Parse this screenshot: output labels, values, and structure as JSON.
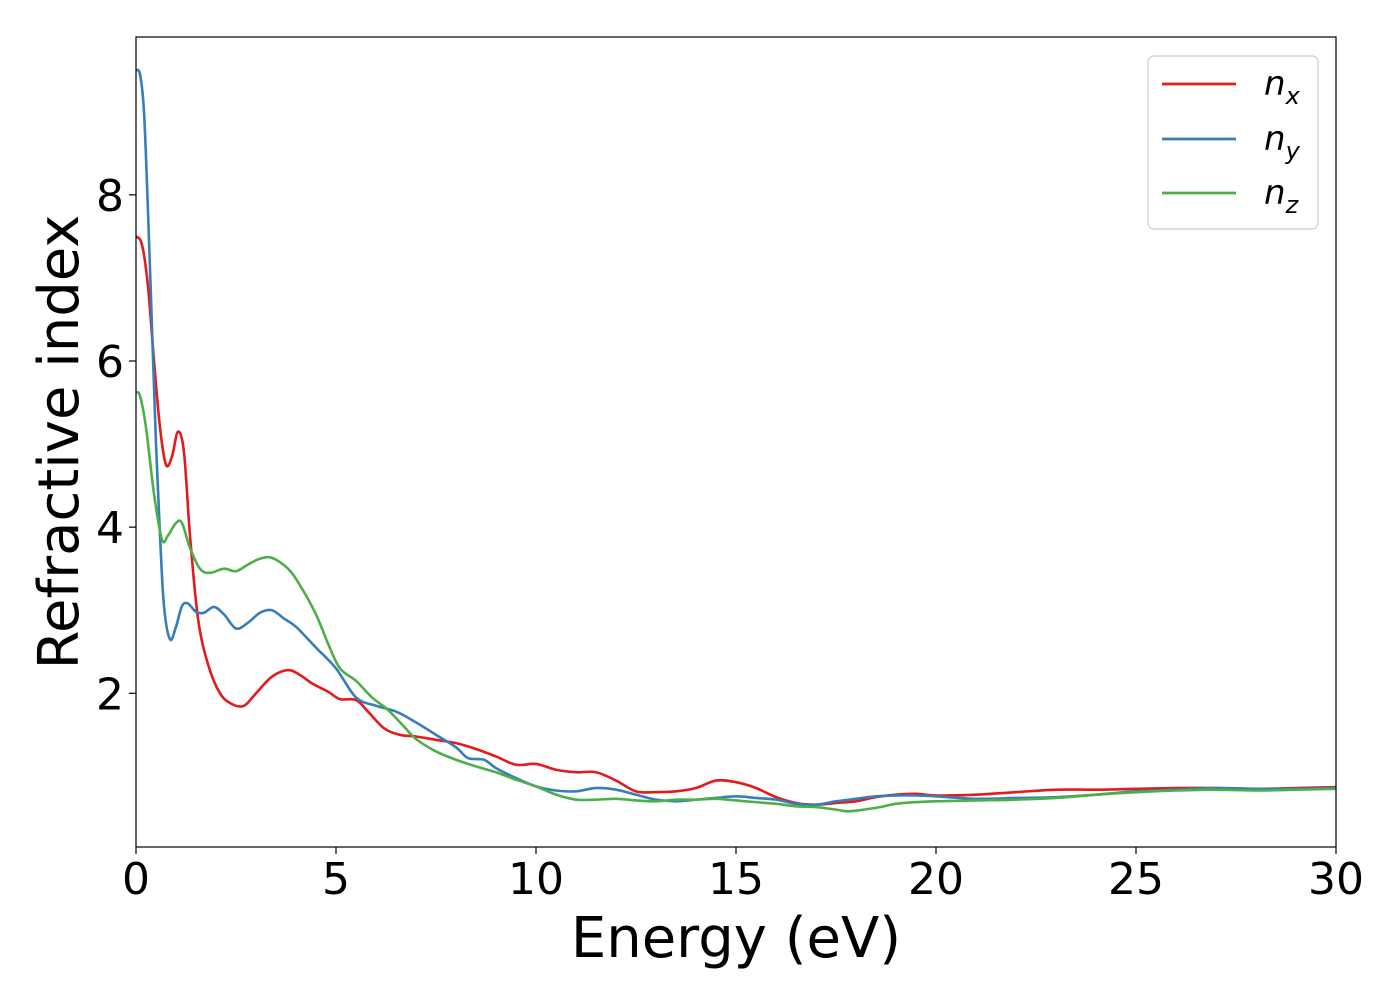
{
  "chart_data": {
    "type": "line",
    "xlabel": "Energy (eV)",
    "ylabel": "Refractive index",
    "xlim": [
      0,
      30
    ],
    "ylim": [
      0.15,
      9.9
    ],
    "x_ticks": [
      "0",
      "5",
      "10",
      "15",
      "20",
      "25",
      "30"
    ],
    "y_ticks": [
      "2",
      "4",
      "6",
      "8"
    ],
    "grid": false,
    "legend_position": "top-right",
    "series": [
      {
        "name": "n_x",
        "label_main": "n",
        "label_sub": "x",
        "color": "#e41a1c",
        "points": [
          [
            0.0,
            7.5
          ],
          [
            0.15,
            7.4
          ],
          [
            0.3,
            6.9
          ],
          [
            0.45,
            6.0
          ],
          [
            0.6,
            5.2
          ],
          [
            0.75,
            4.75
          ],
          [
            0.9,
            4.85
          ],
          [
            1.05,
            5.15
          ],
          [
            1.2,
            4.9
          ],
          [
            1.35,
            3.9
          ],
          [
            1.55,
            2.9
          ],
          [
            1.8,
            2.35
          ],
          [
            2.1,
            2.0
          ],
          [
            2.4,
            1.87
          ],
          [
            2.7,
            1.85
          ],
          [
            3.0,
            2.0
          ],
          [
            3.4,
            2.2
          ],
          [
            3.8,
            2.28
          ],
          [
            4.1,
            2.22
          ],
          [
            4.4,
            2.12
          ],
          [
            4.8,
            2.02
          ],
          [
            5.1,
            1.93
          ],
          [
            5.5,
            1.92
          ],
          [
            5.8,
            1.78
          ],
          [
            6.2,
            1.58
          ],
          [
            6.6,
            1.5
          ],
          [
            7.0,
            1.48
          ],
          [
            7.5,
            1.44
          ],
          [
            8.0,
            1.4
          ],
          [
            8.5,
            1.33
          ],
          [
            9.0,
            1.24
          ],
          [
            9.5,
            1.14
          ],
          [
            10.0,
            1.15
          ],
          [
            10.5,
            1.08
          ],
          [
            11.0,
            1.05
          ],
          [
            11.5,
            1.05
          ],
          [
            12.0,
            0.95
          ],
          [
            12.5,
            0.82
          ],
          [
            13.0,
            0.81
          ],
          [
            13.5,
            0.82
          ],
          [
            14.0,
            0.86
          ],
          [
            14.5,
            0.95
          ],
          [
            15.0,
            0.93
          ],
          [
            15.5,
            0.86
          ],
          [
            16.0,
            0.75
          ],
          [
            16.5,
            0.68
          ],
          [
            17.0,
            0.66
          ],
          [
            17.5,
            0.68
          ],
          [
            18.0,
            0.7
          ],
          [
            18.5,
            0.75
          ],
          [
            19.0,
            0.78
          ],
          [
            19.5,
            0.79
          ],
          [
            20.0,
            0.77
          ],
          [
            21.0,
            0.78
          ],
          [
            22.0,
            0.81
          ],
          [
            23.0,
            0.84
          ],
          [
            24.0,
            0.84
          ],
          [
            25.0,
            0.85
          ],
          [
            26.0,
            0.86
          ],
          [
            27.0,
            0.86
          ],
          [
            28.0,
            0.85
          ],
          [
            29.0,
            0.86
          ],
          [
            30.0,
            0.87
          ]
        ]
      },
      {
        "name": "n_y",
        "label_main": "n",
        "label_sub": "y",
        "color": "#377eb8",
        "points": [
          [
            0.0,
            9.5
          ],
          [
            0.1,
            9.45
          ],
          [
            0.2,
            9.0
          ],
          [
            0.3,
            7.8
          ],
          [
            0.4,
            6.4
          ],
          [
            0.5,
            5.0
          ],
          [
            0.6,
            3.9
          ],
          [
            0.7,
            3.05
          ],
          [
            0.85,
            2.65
          ],
          [
            1.0,
            2.8
          ],
          [
            1.15,
            3.05
          ],
          [
            1.3,
            3.08
          ],
          [
            1.5,
            2.98
          ],
          [
            1.7,
            2.97
          ],
          [
            1.95,
            3.04
          ],
          [
            2.2,
            2.95
          ],
          [
            2.5,
            2.78
          ],
          [
            2.8,
            2.85
          ],
          [
            3.1,
            2.97
          ],
          [
            3.4,
            3.0
          ],
          [
            3.7,
            2.9
          ],
          [
            4.0,
            2.8
          ],
          [
            4.5,
            2.55
          ],
          [
            5.0,
            2.3
          ],
          [
            5.5,
            1.95
          ],
          [
            6.0,
            1.85
          ],
          [
            6.5,
            1.78
          ],
          [
            7.0,
            1.65
          ],
          [
            7.5,
            1.5
          ],
          [
            8.0,
            1.35
          ],
          [
            8.3,
            1.22
          ],
          [
            8.7,
            1.2
          ],
          [
            9.0,
            1.1
          ],
          [
            9.5,
            0.98
          ],
          [
            10.0,
            0.88
          ],
          [
            10.5,
            0.83
          ],
          [
            11.0,
            0.82
          ],
          [
            11.5,
            0.86
          ],
          [
            12.0,
            0.84
          ],
          [
            12.5,
            0.78
          ],
          [
            13.0,
            0.72
          ],
          [
            13.5,
            0.7
          ],
          [
            14.0,
            0.72
          ],
          [
            14.5,
            0.74
          ],
          [
            15.0,
            0.76
          ],
          [
            15.5,
            0.74
          ],
          [
            16.0,
            0.72
          ],
          [
            16.5,
            0.67
          ],
          [
            17.0,
            0.66
          ],
          [
            17.5,
            0.7
          ],
          [
            18.0,
            0.73
          ],
          [
            18.5,
            0.76
          ],
          [
            19.0,
            0.77
          ],
          [
            19.5,
            0.77
          ],
          [
            20.0,
            0.76
          ],
          [
            21.0,
            0.73
          ],
          [
            22.0,
            0.74
          ],
          [
            23.0,
            0.75
          ],
          [
            24.0,
            0.78
          ],
          [
            25.0,
            0.82
          ],
          [
            26.0,
            0.84
          ],
          [
            27.0,
            0.86
          ],
          [
            28.0,
            0.85
          ],
          [
            29.0,
            0.85
          ],
          [
            30.0,
            0.86
          ]
        ]
      },
      {
        "name": "n_z",
        "label_main": "n",
        "label_sub": "z",
        "color": "#4daf4a",
        "points": [
          [
            0.0,
            5.62
          ],
          [
            0.1,
            5.58
          ],
          [
            0.25,
            5.2
          ],
          [
            0.45,
            4.4
          ],
          [
            0.65,
            3.85
          ],
          [
            0.8,
            3.9
          ],
          [
            1.0,
            4.05
          ],
          [
            1.15,
            4.05
          ],
          [
            1.35,
            3.75
          ],
          [
            1.6,
            3.5
          ],
          [
            1.85,
            3.45
          ],
          [
            2.2,
            3.5
          ],
          [
            2.5,
            3.47
          ],
          [
            2.8,
            3.55
          ],
          [
            3.1,
            3.62
          ],
          [
            3.4,
            3.63
          ],
          [
            3.8,
            3.5
          ],
          [
            4.1,
            3.3
          ],
          [
            4.5,
            2.95
          ],
          [
            4.8,
            2.6
          ],
          [
            5.1,
            2.3
          ],
          [
            5.5,
            2.15
          ],
          [
            5.9,
            1.95
          ],
          [
            6.3,
            1.8
          ],
          [
            6.7,
            1.6
          ],
          [
            7.0,
            1.45
          ],
          [
            7.5,
            1.3
          ],
          [
            8.0,
            1.2
          ],
          [
            8.5,
            1.12
          ],
          [
            9.0,
            1.05
          ],
          [
            9.5,
            0.96
          ],
          [
            10.0,
            0.88
          ],
          [
            10.5,
            0.78
          ],
          [
            11.0,
            0.72
          ],
          [
            11.5,
            0.72
          ],
          [
            12.0,
            0.73
          ],
          [
            12.5,
            0.71
          ],
          [
            13.0,
            0.7
          ],
          [
            13.5,
            0.72
          ],
          [
            14.0,
            0.72
          ],
          [
            14.5,
            0.73
          ],
          [
            15.0,
            0.71
          ],
          [
            15.5,
            0.69
          ],
          [
            16.0,
            0.67
          ],
          [
            16.5,
            0.64
          ],
          [
            17.0,
            0.63
          ],
          [
            17.5,
            0.6
          ],
          [
            17.8,
            0.58
          ],
          [
            18.2,
            0.6
          ],
          [
            18.6,
            0.63
          ],
          [
            19.0,
            0.67
          ],
          [
            19.5,
            0.69
          ],
          [
            20.0,
            0.7
          ],
          [
            21.0,
            0.71
          ],
          [
            22.0,
            0.72
          ],
          [
            23.0,
            0.74
          ],
          [
            24.0,
            0.78
          ],
          [
            25.0,
            0.81
          ],
          [
            26.0,
            0.83
          ],
          [
            27.0,
            0.84
          ],
          [
            28.0,
            0.83
          ],
          [
            29.0,
            0.84
          ],
          [
            30.0,
            0.85
          ]
        ]
      }
    ]
  }
}
